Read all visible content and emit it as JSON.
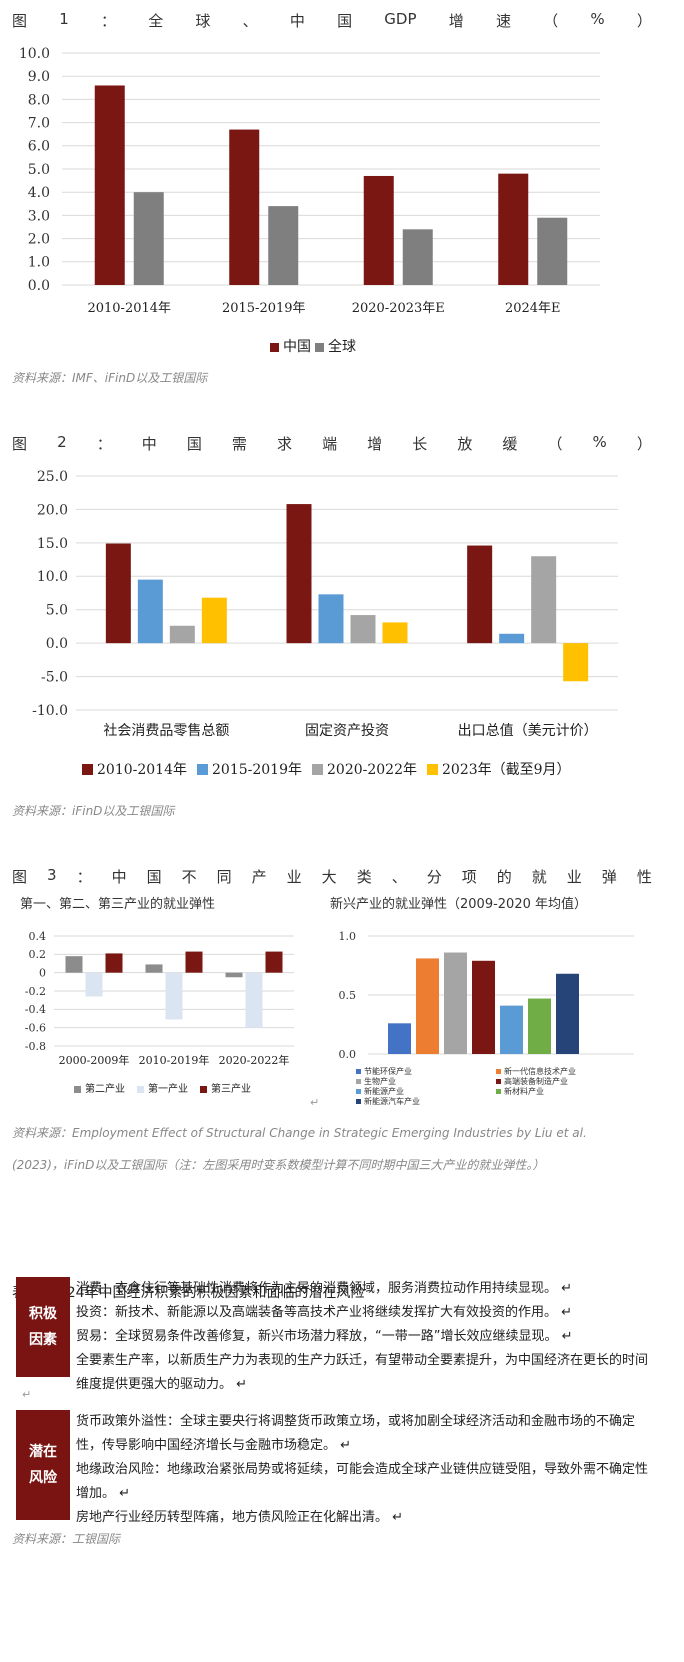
{
  "fig1": {
    "title_chars": [
      "图",
      "1",
      "：",
      "全",
      "球",
      "、",
      "中",
      "国",
      "GDP",
      "增",
      "速",
      "（",
      "%",
      "）"
    ],
    "source": "资料来源：IMF、iFinD以及工银国际"
  },
  "fig2": {
    "title_chars": [
      "图",
      "2",
      "：",
      "中",
      "国",
      "需",
      "求",
      "端",
      "增",
      "长",
      "放",
      "缓",
      "（",
      "%",
      "）"
    ],
    "source": "资料来源：iFinD以及工银国际"
  },
  "fig3": {
    "title_chars": [
      "图",
      "3",
      "：",
      "中",
      "国",
      "不",
      "同",
      "产",
      "业",
      "大",
      "类",
      "、",
      "分",
      "项",
      "的",
      "就",
      "业",
      "弹",
      "性"
    ],
    "left_caption": "第一、第二、第三产业的就业弹性",
    "right_caption": "新兴产业的就业弹性（2009-2020 年均值）",
    "source_line1": "资料来源：Employment Effect of Structural Change in Strategic Emerging Industries by Liu et al.",
    "source_line2": "(2023)，iFinD以及工银国际（注：左图采用时变系数模型计算不同时期中国三大产业的就业弹性。）"
  },
  "table1": {
    "title": "表1：2024年中国经济积累的积极因素和面临的潜在风险",
    "positive_label": "积极因素",
    "positive_items": [
      "消费：衣食住行等基础性消费将作为主导的消费领域，服务消费拉动作用持续显现。",
      "投资：新技术、新能源以及高端装备等高技术产业将继续发挥扩大有效投资的作用。",
      "贸易：全球贸易条件改善修复，新兴市场潜力释放，“一带一路”增长效应继续显现。",
      "全要素生产率，以新质生产力为表现的生产力跃迁，有望带动全要素提升，为中国经济在更长的时间维度提供更强大的驱动力。"
    ],
    "risk_label": "潜在风险",
    "risk_items": [
      "货币政策外溢性：全球主要央行将调整货币政策立场，或将加剧全球经济活动和金融市场的不确定性，传导影响中国经济增长与金融市场稳定。",
      "地缘政治风险：地缘政治紧张局势或将延续，可能会造成全球产业链供应链受阻，导致外需不确定性增加。",
      "房地产行业经历转型阵痛，地方债风险正在化解出清。"
    ],
    "source": "资料来源：工银国际"
  },
  "chart_data": [
    {
      "type": "bar",
      "categories": [
        "2010-2014年",
        "2015-2019年",
        "2020-2023年E",
        "2024年E"
      ],
      "series": [
        {
          "name": "中国",
          "values": [
            8.6,
            6.7,
            4.7,
            4.8
          ],
          "color": "#7b1713"
        },
        {
          "name": "全球",
          "values": [
            4.0,
            3.4,
            2.4,
            2.9
          ],
          "color": "#7f7f7f"
        }
      ],
      "ylim": [
        0,
        10
      ],
      "yticks": [
        "0.0",
        "1.0",
        "2.0",
        "3.0",
        "4.0",
        "5.0",
        "6.0",
        "7.0",
        "8.0",
        "9.0",
        "10.0"
      ],
      "grid": true,
      "legend": "bottom"
    },
    {
      "type": "bar",
      "categories": [
        "社会消费品零售总额",
        "固定资产投资",
        "出口总值（美元计价）"
      ],
      "series": [
        {
          "name": "2010-2014年",
          "values": [
            14.9,
            20.8,
            14.6
          ],
          "color": "#7b1713"
        },
        {
          "name": "2015-2019年",
          "values": [
            9.5,
            7.3,
            1.4
          ],
          "color": "#5b9bd5"
        },
        {
          "name": "2020-2022年",
          "values": [
            2.6,
            4.2,
            13.0
          ],
          "color": "#a5a5a5"
        },
        {
          "name": "2023年（截至9月）",
          "values": [
            6.8,
            3.1,
            -5.7
          ],
          "color": "#ffc000"
        }
      ],
      "ylim": [
        -10,
        25
      ],
      "yticks": [
        "-10.0",
        "-5.0",
        "0.0",
        "5.0",
        "10.0",
        "15.0",
        "20.0",
        "25.0"
      ],
      "grid": true,
      "legend": "bottom"
    },
    {
      "type": "bar",
      "categories": [
        "2000-2009年",
        "2010-2019年",
        "2020-2022年"
      ],
      "series": [
        {
          "name": "第二产业",
          "values": [
            0.18,
            0.09,
            -0.05
          ],
          "color": "#8c8c8c"
        },
        {
          "name": "第一产业",
          "values": [
            -0.26,
            -0.51,
            -0.6
          ],
          "color": "#dbe4f1"
        },
        {
          "name": "第三产业",
          "values": [
            0.21,
            0.23,
            0.23
          ],
          "color": "#7b1713"
        }
      ],
      "ylim": [
        -0.8,
        0.4
      ],
      "yticks": [
        "-0.8",
        "-0.6",
        "-0.4",
        "-0.2",
        "0",
        "0.2",
        "0.4"
      ],
      "grid": true,
      "legend": "bottom"
    },
    {
      "type": "bar",
      "categories": [
        "节能环保产业",
        "新一代信息技术产业",
        "生物产业",
        "高端装备制造产业",
        "新能源产业",
        "新材料产业",
        "新能源汽车产业"
      ],
      "values": [
        0.26,
        0.81,
        0.86,
        0.79,
        0.41,
        0.47,
        0.68
      ],
      "colors": [
        "#4472c4",
        "#ed7d31",
        "#a5a5a5",
        "#7b1713",
        "#5b9bd5",
        "#70ad47",
        "#264478"
      ],
      "ylim": [
        0,
        1.0
      ],
      "yticks": [
        "0.0",
        "0.5",
        "1.0"
      ],
      "grid": true,
      "legend": "bottom"
    }
  ]
}
